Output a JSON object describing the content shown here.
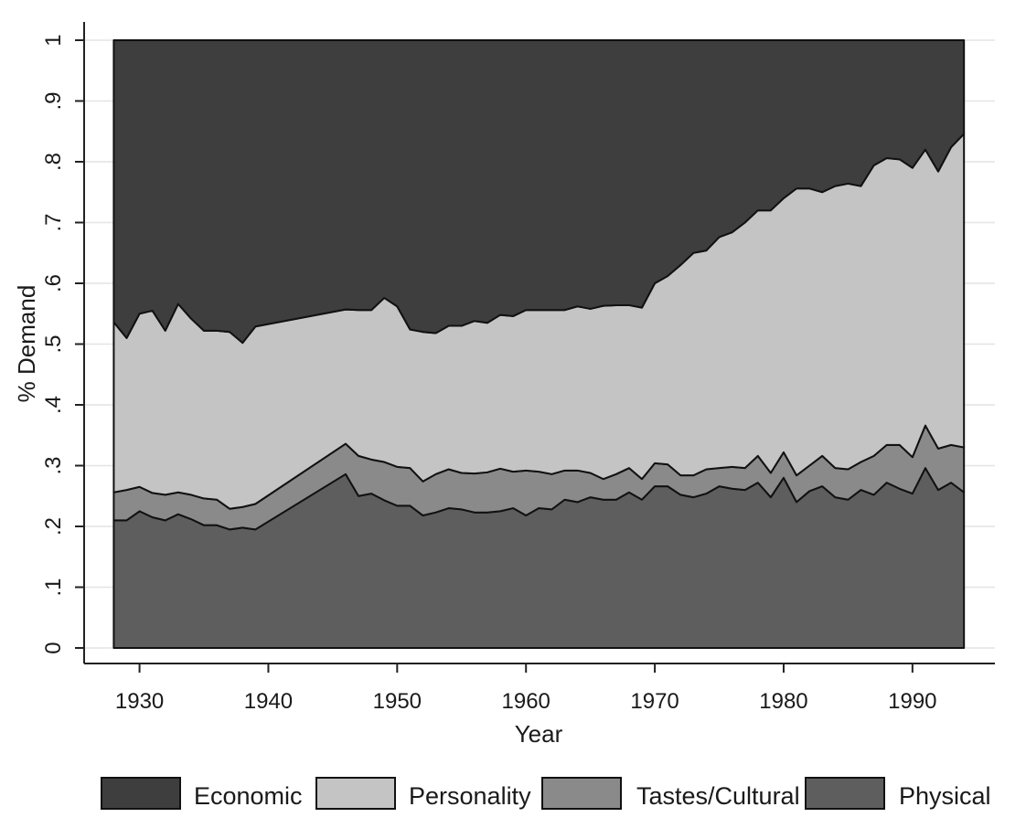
{
  "chart_data": {
    "type": "area",
    "stacked": true,
    "xlabel": "Year",
    "ylabel": "% Demand",
    "xlim": [
      1928,
      1994
    ],
    "ylim": [
      0,
      1
    ],
    "x_ticks": [
      1930,
      1940,
      1950,
      1960,
      1970,
      1980,
      1990
    ],
    "x_tick_labels": [
      "1930",
      "1940",
      "1950",
      "1960",
      "1970",
      "1980",
      "1990"
    ],
    "y_ticks": [
      0,
      0.1,
      0.2,
      0.3,
      0.4,
      0.5,
      0.6,
      0.7,
      0.8,
      0.9,
      1
    ],
    "y_tick_labels": [
      "0",
      ".1",
      ".2",
      ".3",
      ".4",
      ".5",
      ".6",
      ".7",
      ".8",
      ".9",
      "1"
    ],
    "grid": true,
    "legend_position": "bottom",
    "x": [
      1928,
      1929,
      1930,
      1931,
      1932,
      1933,
      1934,
      1935,
      1936,
      1937,
      1938,
      1939,
      1946,
      1947,
      1948,
      1949,
      1950,
      1951,
      1952,
      1953,
      1954,
      1955,
      1956,
      1957,
      1958,
      1959,
      1960,
      1961,
      1962,
      1963,
      1964,
      1965,
      1966,
      1967,
      1968,
      1969,
      1970,
      1971,
      1972,
      1973,
      1974,
      1975,
      1976,
      1977,
      1978,
      1979,
      1980,
      1981,
      1982,
      1983,
      1984,
      1985,
      1986,
      1987,
      1988,
      1989,
      1990,
      1991,
      1992,
      1993,
      1994
    ],
    "series": [
      {
        "name": "Physical",
        "color": "#5e5e5e",
        "values": [
          0.21,
          0.21,
          0.225,
          0.215,
          0.21,
          0.22,
          0.212,
          0.202,
          0.202,
          0.195,
          0.198,
          0.195,
          0.286,
          0.25,
          0.254,
          0.243,
          0.234,
          0.234,
          0.218,
          0.223,
          0.23,
          0.228,
          0.223,
          0.223,
          0.225,
          0.23,
          0.218,
          0.23,
          0.228,
          0.244,
          0.24,
          0.248,
          0.244,
          0.244,
          0.256,
          0.244,
          0.266,
          0.266,
          0.252,
          0.248,
          0.254,
          0.266,
          0.262,
          0.26,
          0.272,
          0.248,
          0.28,
          0.24,
          0.258,
          0.266,
          0.248,
          0.244,
          0.26,
          0.252,
          0.272,
          0.262,
          0.254,
          0.296,
          0.26,
          0.272,
          0.256
        ]
      },
      {
        "name": "Tastes/Cultural",
        "color": "#8a8a8a",
        "values": [
          0.046,
          0.05,
          0.04,
          0.04,
          0.042,
          0.036,
          0.04,
          0.044,
          0.042,
          0.034,
          0.034,
          0.042,
          0.05,
          0.066,
          0.056,
          0.063,
          0.064,
          0.062,
          0.056,
          0.063,
          0.064,
          0.06,
          0.064,
          0.066,
          0.07,
          0.06,
          0.074,
          0.06,
          0.058,
          0.048,
          0.052,
          0.04,
          0.034,
          0.042,
          0.04,
          0.034,
          0.038,
          0.036,
          0.032,
          0.036,
          0.04,
          0.03,
          0.036,
          0.036,
          0.044,
          0.04,
          0.042,
          0.044,
          0.042,
          0.05,
          0.048,
          0.05,
          0.046,
          0.064,
          0.062,
          0.072,
          0.06,
          0.07,
          0.068,
          0.062,
          0.074
        ]
      },
      {
        "name": "Personality",
        "color": "#c4c4c4",
        "values": [
          0.28,
          0.25,
          0.285,
          0.3,
          0.27,
          0.31,
          0.29,
          0.276,
          0.278,
          0.291,
          0.27,
          0.292,
          0.221,
          0.24,
          0.246,
          0.27,
          0.264,
          0.228,
          0.246,
          0.232,
          0.236,
          0.242,
          0.251,
          0.246,
          0.253,
          0.256,
          0.264,
          0.266,
          0.27,
          0.264,
          0.27,
          0.27,
          0.285,
          0.278,
          0.268,
          0.282,
          0.296,
          0.31,
          0.346,
          0.366,
          0.36,
          0.38,
          0.386,
          0.404,
          0.404,
          0.432,
          0.418,
          0.472,
          0.456,
          0.434,
          0.464,
          0.47,
          0.454,
          0.478,
          0.472,
          0.47,
          0.476,
          0.454,
          0.456,
          0.49,
          0.516
        ]
      },
      {
        "name": "Economic",
        "color": "#3e3e3e",
        "values": [
          0.464,
          0.49,
          0.45,
          0.445,
          0.478,
          0.434,
          0.458,
          0.478,
          0.478,
          0.48,
          0.498,
          0.471,
          0.443,
          0.444,
          0.444,
          0.424,
          0.438,
          0.476,
          0.48,
          0.482,
          0.47,
          0.47,
          0.462,
          0.465,
          0.452,
          0.454,
          0.444,
          0.444,
          0.444,
          0.444,
          0.438,
          0.442,
          0.437,
          0.436,
          0.436,
          0.44,
          0.4,
          0.388,
          0.37,
          0.35,
          0.346,
          0.324,
          0.316,
          0.3,
          0.28,
          0.28,
          0.26,
          0.244,
          0.244,
          0.25,
          0.24,
          0.236,
          0.24,
          0.206,
          0.194,
          0.196,
          0.21,
          0.18,
          0.216,
          0.176,
          0.154
        ]
      }
    ],
    "legend_order": [
      "Economic",
      "Personality",
      "Tastes/Cultural",
      "Physical"
    ]
  }
}
